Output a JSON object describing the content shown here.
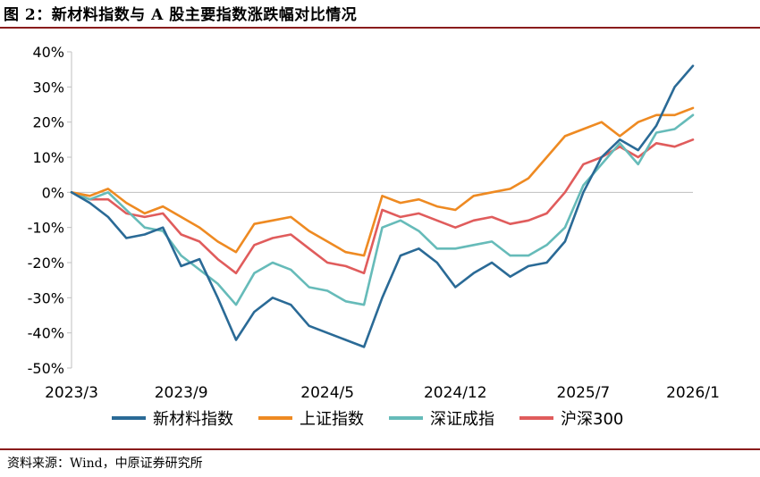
{
  "title": "图 2：新材料指数与 A 股主要指数涨跌幅对比情况",
  "source": "资料来源：Wind，中原证券研究所",
  "chart_data": {
    "type": "line",
    "title": "图 2：新材料指数与 A 股主要指数涨跌幅对比情况",
    "xlabel": "",
    "ylabel": "",
    "ylim": [
      -50,
      40
    ],
    "ytick_labels": [
      "40%",
      "30%",
      "20%",
      "10%",
      "0%",
      "-10%",
      "-20%",
      "-30%",
      "-40%",
      "-50%"
    ],
    "x_tick_labels": [
      "2023/3",
      "2023/9",
      "2024/5",
      "2024/12",
      "2025/7",
      "2026/1"
    ],
    "x_ticks": [
      "2023-03",
      "2023-09",
      "2024-05",
      "2024-12",
      "2025-07",
      "2026-01"
    ],
    "x": [
      "2023-03",
      "2023-04",
      "2023-05",
      "2023-06",
      "2023-07",
      "2023-08",
      "2023-09",
      "2023-10",
      "2023-11",
      "2023-12",
      "2024-01",
      "2024-02",
      "2024-03",
      "2024-04",
      "2024-05",
      "2024-06",
      "2024-07",
      "2024-08",
      "2024-09",
      "2024-10",
      "2024-11",
      "2024-12",
      "2025-01",
      "2025-02",
      "2025-03",
      "2025-04",
      "2025-05",
      "2025-06",
      "2025-07",
      "2025-08",
      "2025-09",
      "2025-10",
      "2025-11",
      "2025-12",
      "2026-01"
    ],
    "grid": false,
    "legend_position": "bottom",
    "series": [
      {
        "name": "新材料指数",
        "color": "#2a6a96",
        "values": [
          0,
          -3,
          -7,
          -13,
          -12,
          -10,
          -21,
          -19,
          -30,
          -42,
          -34,
          -30,
          -32,
          -38,
          -40,
          -42,
          -44,
          -30,
          -18,
          -16,
          -20,
          -27,
          -23,
          -20,
          -24,
          -21,
          -20,
          -14,
          0,
          10,
          15,
          12,
          19,
          30,
          36
        ]
      },
      {
        "name": "上证指数",
        "color": "#ee8a22",
        "values": [
          0,
          -1,
          1,
          -3,
          -6,
          -4,
          -7,
          -10,
          -14,
          -17,
          -9,
          -8,
          -7,
          -11,
          -14,
          -17,
          -18,
          -1,
          -3,
          -2,
          -4,
          -5,
          -1,
          0,
          1,
          4,
          10,
          16,
          18,
          20,
          16,
          20,
          22,
          22,
          24
        ]
      },
      {
        "name": "深证成指",
        "color": "#66bbb9",
        "values": [
          0,
          -2,
          0,
          -5,
          -10,
          -11,
          -18,
          -22,
          -26,
          -32,
          -23,
          -20,
          -22,
          -27,
          -28,
          -31,
          -32,
          -10,
          -8,
          -11,
          -16,
          -16,
          -15,
          -14,
          -18,
          -18,
          -15,
          -10,
          2,
          8,
          14,
          8,
          17,
          18,
          22
        ]
      },
      {
        "name": "沪深300",
        "color": "#e05c5c",
        "values": [
          0,
          -2,
          -2,
          -6,
          -7,
          -6,
          -12,
          -14,
          -19,
          -23,
          -15,
          -13,
          -12,
          -16,
          -20,
          -21,
          -23,
          -5,
          -7,
          -6,
          -8,
          -10,
          -8,
          -7,
          -9,
          -8,
          -6,
          0,
          8,
          10,
          13,
          10,
          14,
          13,
          15
        ]
      }
    ]
  }
}
